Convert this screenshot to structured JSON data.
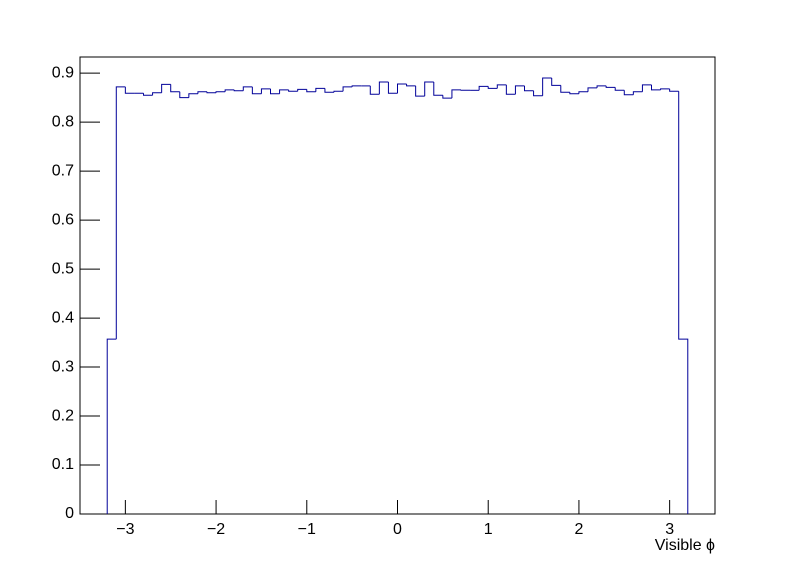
{
  "chart_data": {
    "type": "histogram",
    "xlabel": "Visible ϕ",
    "bins": [
      -3.2,
      -3.1,
      -3.0,
      -2.9,
      -2.8,
      -2.7,
      -2.6,
      -2.5,
      -2.4,
      -2.3,
      -2.2,
      -2.1,
      -2.0,
      -1.9,
      -1.8,
      -1.7,
      -1.6,
      -1.5,
      -1.4,
      -1.3,
      -1.2,
      -1.1,
      -1.0,
      -0.9,
      -0.8,
      -0.7,
      -0.6,
      -0.5,
      -0.4,
      -0.3,
      -0.2,
      -0.1,
      0.0,
      0.1,
      0.2,
      0.3,
      0.4,
      0.5,
      0.6,
      0.7,
      0.8,
      0.9,
      1.0,
      1.1,
      1.2,
      1.3,
      1.4,
      1.5,
      1.6,
      1.7,
      1.8,
      1.9,
      2.0,
      2.1,
      2.2,
      2.3,
      2.4,
      2.5,
      2.6,
      2.7,
      2.8,
      2.9,
      3.0,
      3.1,
      3.2
    ],
    "values": [
      0.357,
      0.872,
      0.859,
      0.859,
      0.855,
      0.86,
      0.877,
      0.862,
      0.85,
      0.858,
      0.862,
      0.86,
      0.862,
      0.866,
      0.864,
      0.872,
      0.858,
      0.868,
      0.858,
      0.866,
      0.863,
      0.867,
      0.862,
      0.869,
      0.861,
      0.863,
      0.872,
      0.874,
      0.874,
      0.857,
      0.882,
      0.859,
      0.878,
      0.874,
      0.853,
      0.882,
      0.855,
      0.849,
      0.866,
      0.865,
      0.865,
      0.873,
      0.869,
      0.876,
      0.857,
      0.874,
      0.864,
      0.854,
      0.89,
      0.875,
      0.861,
      0.858,
      0.862,
      0.87,
      0.874,
      0.871,
      0.865,
      0.856,
      0.862,
      0.876,
      0.866,
      0.868,
      0.863,
      0.357
    ],
    "color": "#000099",
    "xlim": [
      -3.5,
      3.5
    ],
    "xticks": [
      {
        "value": -3,
        "label": "−3"
      },
      {
        "value": -2,
        "label": "−2"
      },
      {
        "value": -1,
        "label": "−1"
      },
      0,
      1,
      2,
      3
    ],
    "ylim": [
      0,
      0.933
    ],
    "yticks": [
      0,
      0.1,
      0.2,
      0.3,
      0.4,
      0.5,
      0.6,
      0.7,
      0.8,
      0.9
    ]
  }
}
